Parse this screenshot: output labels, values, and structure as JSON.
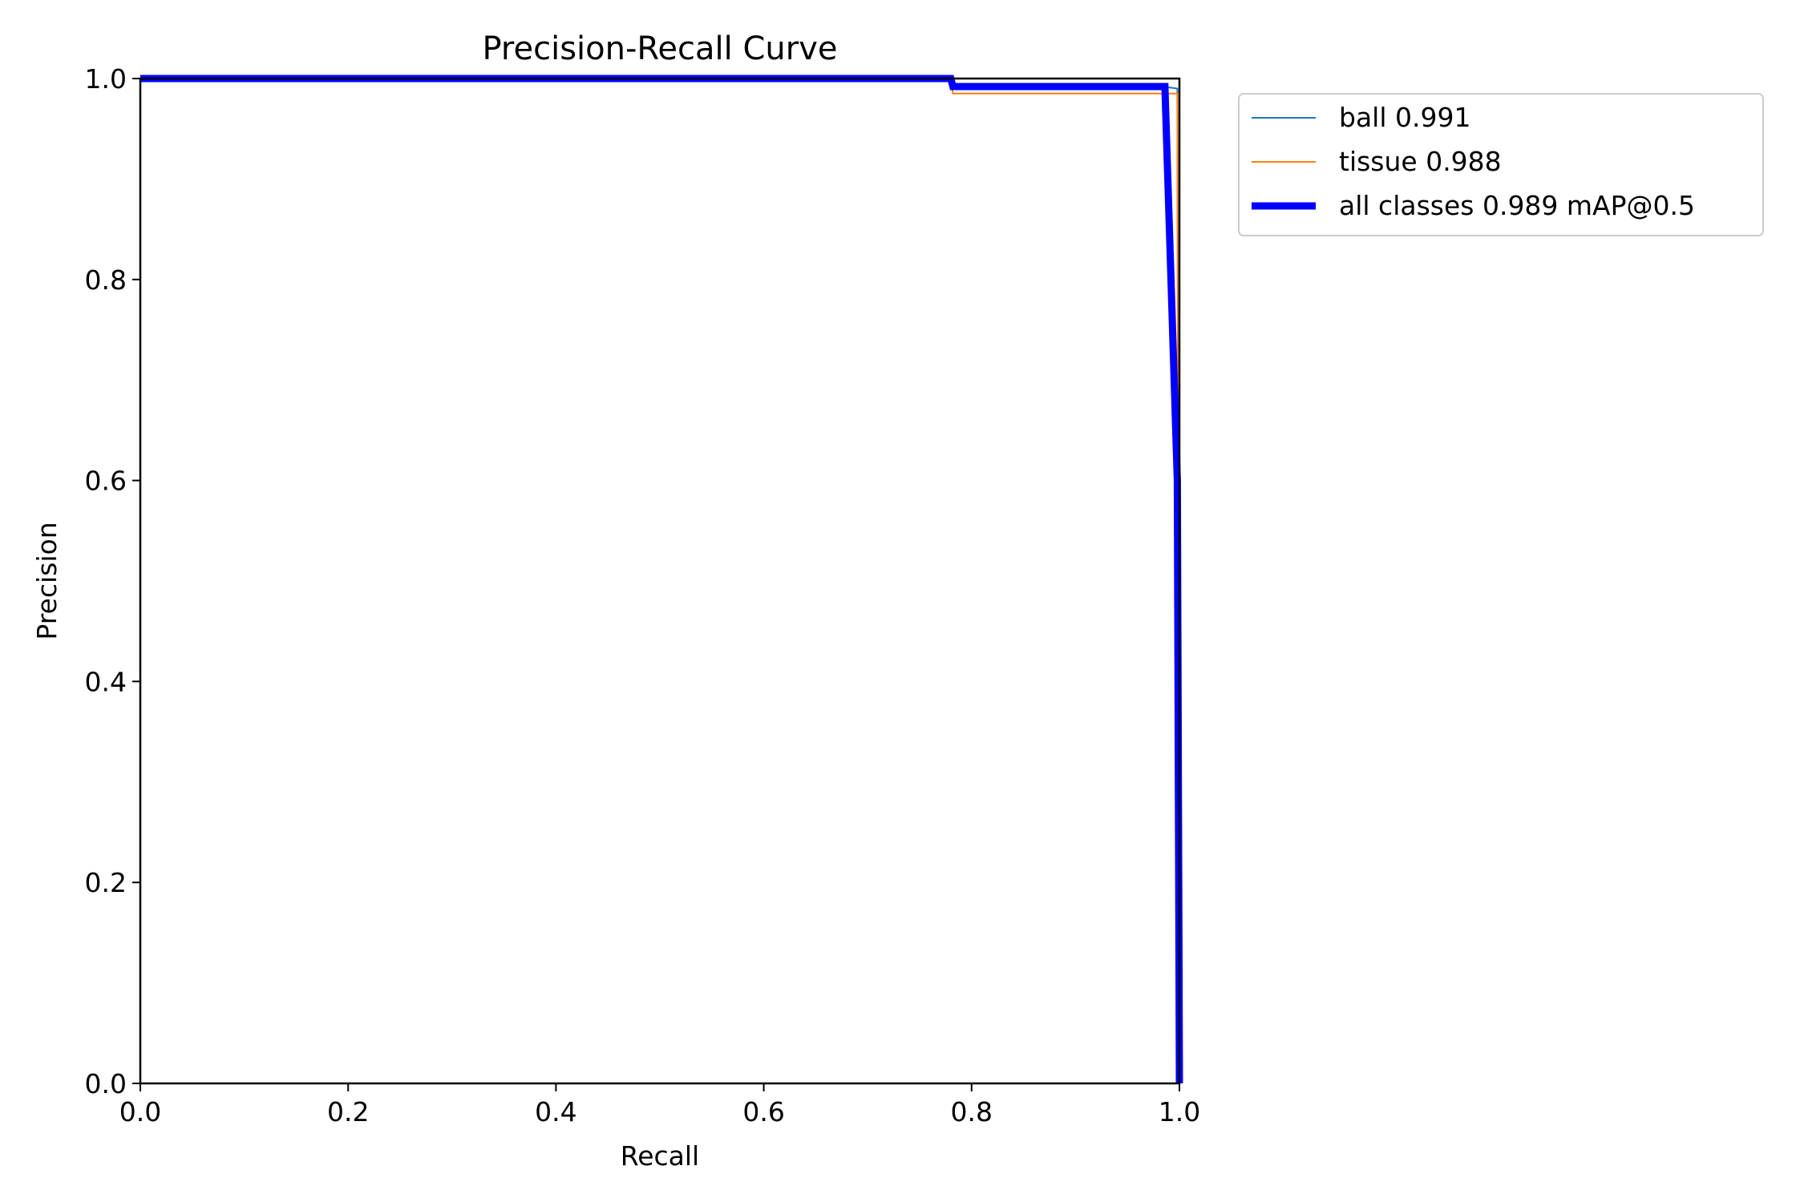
{
  "chart_data": {
    "type": "line",
    "title": "Precision-Recall Curve",
    "xlabel": "Recall",
    "ylabel": "Precision",
    "xlim": [
      0.0,
      1.0
    ],
    "ylim": [
      0.0,
      1.0
    ],
    "xticks": [
      "0.0",
      "0.2",
      "0.4",
      "0.6",
      "0.8",
      "1.0"
    ],
    "yticks": [
      "0.0",
      "0.2",
      "0.4",
      "0.6",
      "0.8",
      "1.0"
    ],
    "grid": false,
    "legend_position": "outside-top-right",
    "series": [
      {
        "name": "ball 0.991",
        "color": "#1f77b4",
        "x": [
          0.0,
          0.78,
          0.782,
          0.984,
          0.998,
          1.0
        ],
        "y": [
          1.0,
          1.0,
          0.992,
          0.992,
          0.99,
          0.0
        ]
      },
      {
        "name": "tissue 0.988",
        "color": "#ff7f0e",
        "x": [
          0.0,
          0.78,
          0.782,
          0.984,
          0.986,
          0.998,
          1.0
        ],
        "y": [
          1.0,
          1.0,
          0.985,
          0.985,
          0.985,
          0.985,
          0.0
        ]
      },
      {
        "name": "all classes 0.989 mAP@0.5",
        "color": "#0000ff",
        "x": [
          0.0,
          0.78,
          0.782,
          0.984,
          0.986,
          0.998,
          1.0
        ],
        "y": [
          1.0,
          1.0,
          0.992,
          0.992,
          0.992,
          0.6,
          0.0
        ]
      }
    ]
  }
}
